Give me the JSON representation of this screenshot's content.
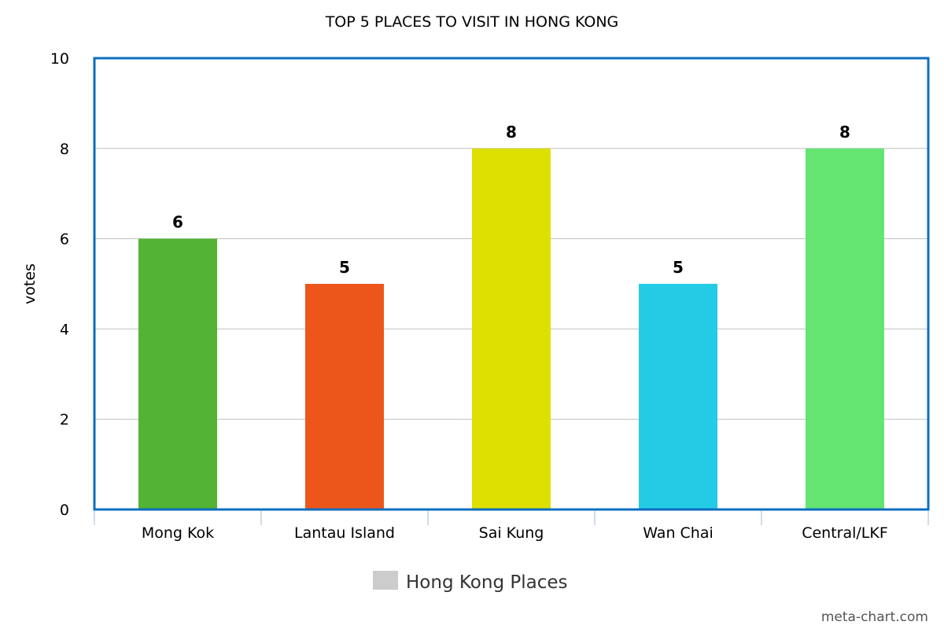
{
  "chart_data": {
    "type": "bar",
    "title": "TOP 5 PLACES TO VISIT IN HONG KONG",
    "xlabel": "",
    "ylabel": "votes",
    "ylim": [
      0,
      10
    ],
    "yticks": [
      0,
      2,
      4,
      6,
      8,
      10
    ],
    "categories": [
      "Mong Kok",
      "Lantau Island",
      "Sai Kung",
      "Wan Chai",
      "Central/LKF"
    ],
    "series": [
      {
        "name": "Hong Kong Places",
        "values": [
          6,
          5,
          8,
          5,
          8
        ],
        "colors": [
          "#52b335",
          "#ec561b",
          "#dde000",
          "#24cbe5",
          "#64e572"
        ]
      }
    ],
    "grid": true,
    "legend_position": "bottom-center",
    "legend_color": "#cccccc",
    "plot_border_color": "#0d6ebf",
    "grid_color": "#c0c0c0"
  },
  "credit": "meta-chart.com"
}
